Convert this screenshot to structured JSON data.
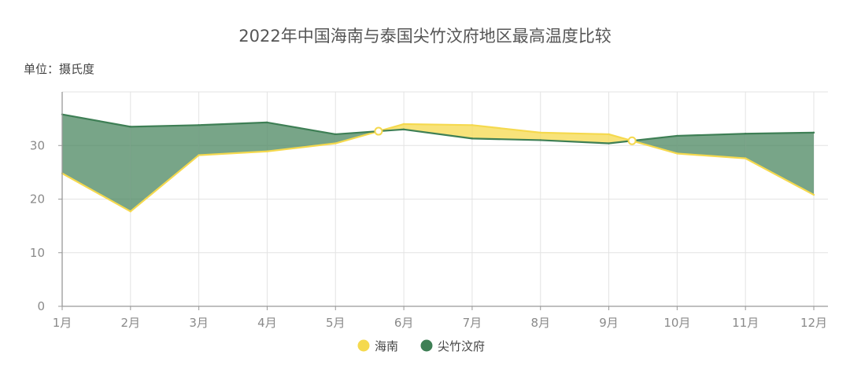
{
  "chart_data": {
    "type": "area",
    "title": "2022年中国海南与泰国尖竹汶府地区最高温度比较",
    "unit": "单位：摄氏度",
    "categories": [
      "1月",
      "2月",
      "3月",
      "4月",
      "5月",
      "6月",
      "7月",
      "8月",
      "9月",
      "10月",
      "11月",
      "12月"
    ],
    "ylim": [
      0,
      40
    ],
    "yticks": [
      0,
      10,
      20,
      30
    ],
    "grid": true,
    "legend_position": "bottom-center",
    "series": [
      {
        "name": "海南",
        "color": "#f5d94e",
        "values": [
          24.8,
          17.7,
          28.2,
          28.9,
          30.4,
          34.0,
          33.8,
          32.4,
          32.1,
          28.5,
          27.6,
          20.8
        ]
      },
      {
        "name": "尖竹汶府",
        "color": "#3e7f55",
        "values": [
          35.8,
          33.5,
          33.8,
          34.3,
          32.1,
          33.0,
          31.3,
          31.0,
          30.4,
          31.8,
          32.2,
          32.4
        ]
      }
    ]
  }
}
